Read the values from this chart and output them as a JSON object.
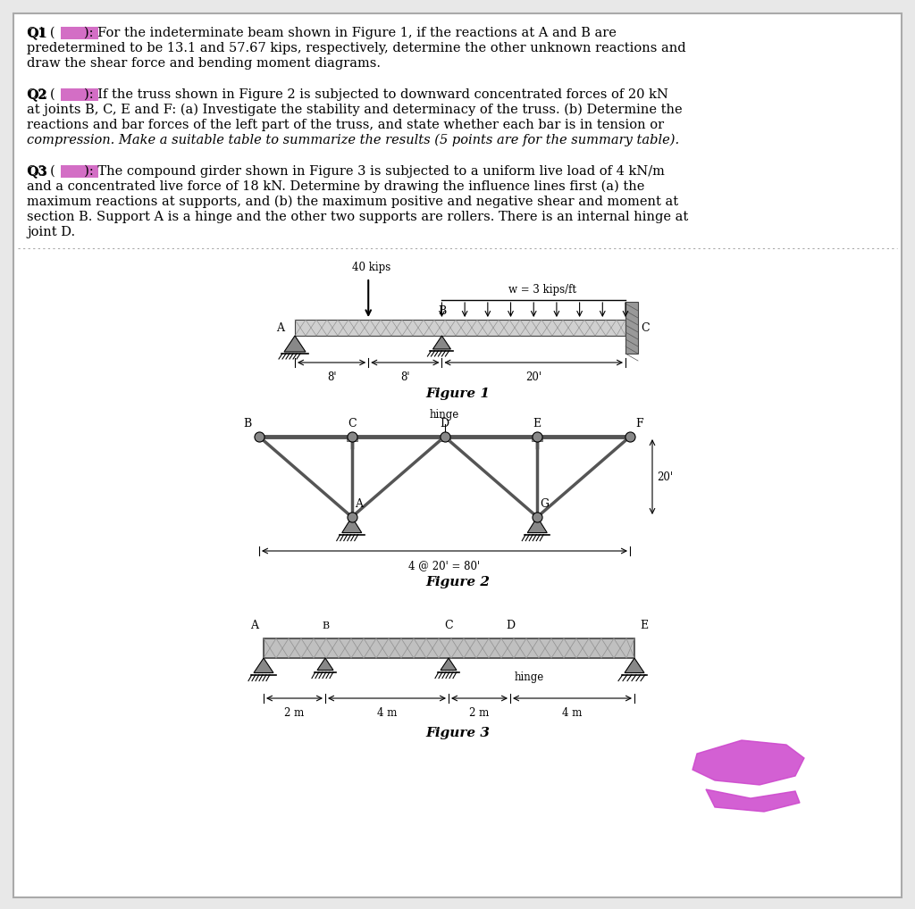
{
  "bg_color": "#e8e8e8",
  "page_bg": "#ffffff",
  "fig_width": 10.24,
  "fig_height": 10.18,
  "dpi": 100,
  "text_blocks": {
    "q1_line1": "Q1 (       ): For the indeterminate beam shown in Figure 1, if the reactions at A and B are",
    "q1_line2": "predetermined to be 13.1 and 57.67 kips, respectively, determine the other unknown reactions and",
    "q1_line3": "draw the shear force and bending moment diagrams.",
    "q2_line1": "Q2 (       ): If the truss shown in Figure 2 is subjected to downward concentrated forces of 20 kN",
    "q2_line2": "at joints B, C, E and F: (a) Investigate the stability and determinacy of the truss. (b) Determine the",
    "q2_line3": "reactions and bar forces of the left part of the truss, and state whether each bar is in tension or",
    "q2_line4": "compression. Make a suitable table to summarize the results (5 points are for the summary table).",
    "q3_line1": "Q3 (       ): The compound girder shown in Figure 3 is subjected to a uniform live load of 4 kN/m",
    "q3_line2": "and a concentrated live force of 18 kN. Determine by drawing the influence lines first (a) the",
    "q3_line3": "maximum reactions at supports, and (b) the maximum positive and negative shear and moment at",
    "q3_line4": "section B. Support A is a hinge and the other two supports are rollers. There is an internal hinge at",
    "q3_line5": "joint D."
  },
  "fig1_caption": "Figure 1",
  "fig2_caption": "Figure 2",
  "fig3_caption": "Figure 3",
  "highlight_color": "#cc55bb",
  "gray_beam": "#b8b8b8",
  "dark_gray": "#555555",
  "magenta": "#cc44cc"
}
